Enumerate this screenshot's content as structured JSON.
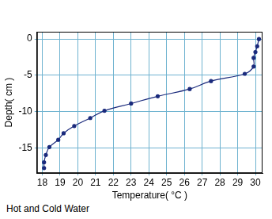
{
  "chart_data": {
    "type": "line",
    "title": "Hot and Cold Water",
    "x_label": "Temperature( °C )",
    "y_label": "Depth( cm )",
    "x": [
      30.2,
      30.1,
      30.0,
      29.9,
      29.9,
      29.4,
      27.5,
      26.3,
      24.5,
      23.0,
      21.5,
      20.7,
      19.8,
      19.2,
      18.9,
      18.4,
      18.2,
      18.1,
      18.1
    ],
    "values": [
      0,
      -1,
      -1.8,
      -2.6,
      -3.8,
      -4.8,
      -5.8,
      -6.9,
      -7.9,
      -8.9,
      -9.9,
      -10.9,
      -12.0,
      -13.0,
      -13.9,
      -14.9,
      -16.0,
      -17.0,
      -17.8
    ],
    "color": "#1a2a7c",
    "marker": "circle",
    "line_style": "solid",
    "xlim": [
      17.7,
      30.4
    ],
    "xticks": [
      18,
      19,
      20,
      21,
      22,
      23,
      24,
      25,
      26,
      27,
      28,
      29,
      30
    ],
    "ylim": [
      -18.5,
      1
    ],
    "yticks": [
      0,
      -5,
      -10,
      -15
    ],
    "grid": true
  }
}
